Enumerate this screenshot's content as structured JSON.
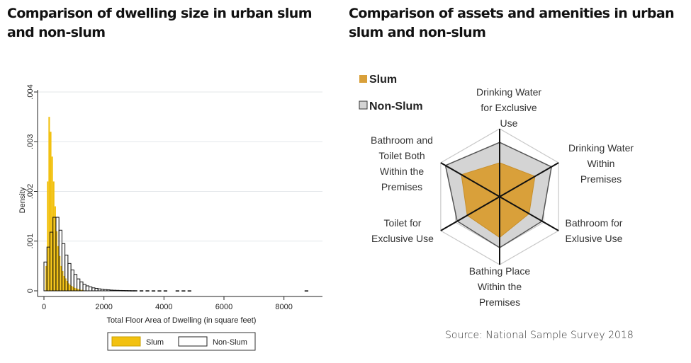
{
  "titles": {
    "left": "Comparison of dwelling size in urban slum and non-slum",
    "right": "Comparison of assets and amenities in urban slum and non-slum"
  },
  "source": "Source: National Sample Survey 2018",
  "colors": {
    "slum": "#f2c110",
    "non_slum_fill": "#ffffff",
    "radar_slum": "#d9a03a",
    "radar_non_slum": "#d4d4d4"
  },
  "chart_data": [
    {
      "type": "bar",
      "subtype": "histogram",
      "xlabel": "Total Floor Area of Dwelling (in square feet)",
      "ylabel": "Density",
      "xlim": [
        0,
        9000
      ],
      "ylim": [
        0,
        0.004
      ],
      "x_ticks": [
        "0",
        "2000",
        "4000",
        "6000",
        "8000"
      ],
      "y_ticks": [
        "0",
        ".001",
        ".002",
        ".003",
        ".004"
      ],
      "grid": true,
      "legend_position": "bottom",
      "series": [
        {
          "name": "Slum",
          "bin_width": 50,
          "bins": [
            [
              50,
              0.0005
            ],
            [
              100,
              0.0022
            ],
            [
              150,
              0.0035
            ],
            [
              200,
              0.0032
            ],
            [
              250,
              0.0027
            ],
            [
              300,
              0.0022
            ],
            [
              350,
              0.0017
            ],
            [
              400,
              0.0012
            ],
            [
              450,
              0.0009
            ],
            [
              500,
              0.0007
            ],
            [
              550,
              0.0005
            ],
            [
              600,
              0.0004
            ],
            [
              650,
              0.0003
            ],
            [
              700,
              0.00025
            ],
            [
              750,
              0.0002
            ],
            [
              800,
              0.00015
            ],
            [
              850,
              0.00012
            ],
            [
              900,
              0.0001
            ],
            [
              950,
              8e-05
            ],
            [
              1000,
              6e-05
            ],
            [
              1050,
              5e-05
            ],
            [
              1100,
              4e-05
            ],
            [
              1150,
              3e-05
            ],
            [
              1200,
              2e-05
            ],
            [
              1250,
              2e-05
            ],
            [
              1300,
              1e-05
            ]
          ]
        },
        {
          "name": "Non-Slum",
          "bin_width": 100,
          "bins": [
            [
              0,
              0.00058
            ],
            [
              100,
              0.00088
            ],
            [
              200,
              0.00118
            ],
            [
              300,
              0.00148
            ],
            [
              400,
              0.00148
            ],
            [
              500,
              0.00122
            ],
            [
              600,
              0.00095
            ],
            [
              700,
              0.00072
            ],
            [
              800,
              0.00055
            ],
            [
              900,
              0.00042
            ],
            [
              1000,
              0.00033
            ],
            [
              1100,
              0.00024
            ],
            [
              1200,
              0.00018
            ],
            [
              1300,
              0.00013
            ],
            [
              1400,
              0.0001
            ],
            [
              1500,
              8e-05
            ],
            [
              1600,
              6e-05
            ],
            [
              1700,
              5e-05
            ],
            [
              1800,
              4e-05
            ],
            [
              1900,
              3e-05
            ],
            [
              2000,
              2.5e-05
            ],
            [
              2100,
              2e-05
            ],
            [
              2200,
              1.5e-05
            ],
            [
              2300,
              1.2e-05
            ],
            [
              2400,
              1e-05
            ],
            [
              2500,
              8e-06
            ],
            [
              2600,
              7e-06
            ],
            [
              2700,
              6e-06
            ],
            [
              2800,
              5e-06
            ],
            [
              2900,
              4e-06
            ],
            [
              3000,
              4e-06
            ],
            [
              3200,
              3e-06
            ],
            [
              3400,
              3e-06
            ],
            [
              3600,
              2e-06
            ],
            [
              3800,
              2e-06
            ],
            [
              4000,
              2e-06
            ],
            [
              4400,
              2e-06
            ],
            [
              4600,
              2e-06
            ],
            [
              4800,
              2e-06
            ],
            [
              8700,
              2e-06
            ]
          ]
        }
      ]
    },
    {
      "type": "radar",
      "axes": [
        "Drinking Water for Exclusive Use",
        "Drinking Water Within Premises",
        "Bathroom for Exlusive Use",
        "Bathing Place Within the Premises",
        "Toilet for Exclusive Use",
        "Bathroom and Toilet Both Within the Premises"
      ],
      "axis_labels": [
        [
          "Drinking Water",
          "for Exclusive",
          "Use"
        ],
        [
          "Drinking Water",
          "Within",
          "Premises"
        ],
        [
          "Bathroom for",
          "Exlusive Use"
        ],
        [
          "Bathing Place",
          "Within the",
          "Premises"
        ],
        [
          "Toilet for",
          "Exclusive Use"
        ],
        [
          "Bathroom and",
          "Toilet Both",
          "Within the",
          "Premises"
        ]
      ],
      "rlim": [
        0,
        1
      ],
      "rings": 4,
      "legend_position": "top-left",
      "series": [
        {
          "name": "Slum",
          "values": [
            0.5,
            0.6,
            0.5,
            0.6,
            0.55,
            0.65
          ]
        },
        {
          "name": "Non-Slum",
          "values": [
            0.8,
            0.88,
            0.72,
            0.75,
            0.72,
            0.92
          ]
        }
      ]
    }
  ]
}
